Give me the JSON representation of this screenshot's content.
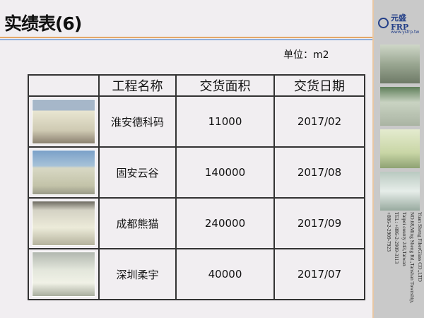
{
  "title": "实绩表(6)",
  "unit": "单位：m2",
  "logo": {
    "name": "元盛FRP",
    "url": "www.ysfrp.tw"
  },
  "company": {
    "lines": [
      "Yuan Sheng FiberGlass CO.,LTD",
      "NO.68,Ming Sheng Rd.,Tanshan Township,",
      "Taipei county 243,Taiwan",
      "TEL: +886-2-2909-3113",
      "+886-2-2909-7923"
    ]
  },
  "table": {
    "headers": [
      "",
      "工程名称",
      "交货面积",
      "交货日期"
    ],
    "rows": [
      {
        "name": "淮安德科码",
        "area": "11000",
        "date": "2017/02"
      },
      {
        "name": "固安云谷",
        "area": "140000",
        "date": "2017/08"
      },
      {
        "name": "成都熊猫",
        "area": "240000",
        "date": "2017/09"
      },
      {
        "name": "深圳柔宇",
        "area": "40000",
        "date": "2017/07"
      }
    ]
  },
  "colors": {
    "accent_orange": "#e4a868",
    "accent_blue": "#8eaedc",
    "brand": "#233f88"
  }
}
